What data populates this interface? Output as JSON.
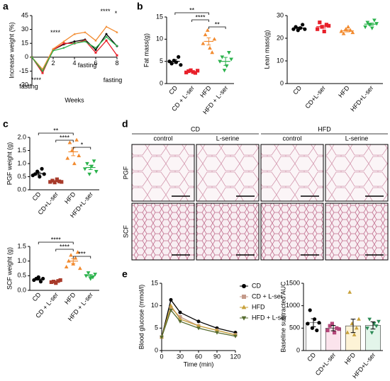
{
  "chart_data": [
    {
      "panel": "a",
      "type": "line",
      "y_label": "Increase weight (%)",
      "x_label": "Weeks",
      "x": [
        0,
        1,
        2,
        3,
        4,
        5,
        6,
        7,
        8
      ],
      "xlim": [
        0,
        8
      ],
      "xticks": [
        2,
        4,
        6,
        8
      ],
      "ylim": [
        -30,
        45
      ],
      "yticks": [
        -30,
        -15,
        0,
        15,
        30,
        45
      ],
      "x_axis_at_zero": true,
      "marker_size": 1.5,
      "series": [
        {
          "name": "CD",
          "color": "#000000",
          "marker": "circle",
          "values": [
            0,
            -15,
            8,
            14,
            17,
            19,
            8,
            25,
            12
          ]
        },
        {
          "name": "CD + L-ser",
          "color": "#e8202a",
          "marker": "square",
          "values": [
            0,
            -17,
            8,
            15,
            15,
            18,
            5,
            18,
            2
          ]
        },
        {
          "name": "HFD",
          "color": "#f28b30",
          "marker": "triangle",
          "values": [
            0,
            -13,
            9,
            17,
            25,
            27,
            18,
            33,
            27
          ]
        },
        {
          "name": "HFD + L-ser",
          "color": "#2bb24c",
          "marker": "triangle-down",
          "values": [
            0,
            -15,
            7,
            10,
            15,
            17,
            10,
            22,
            12
          ]
        }
      ],
      "annotations": [
        {
          "text": "****",
          "x": 0.4,
          "y": -25
        },
        {
          "text": "****",
          "x": 2.2,
          "y": 26
        },
        {
          "text": "****",
          "x": 6.9,
          "y": 49
        },
        {
          "text": "*",
          "x": 7.9,
          "y": 47
        },
        {
          "text": "fasting",
          "x": -0.3,
          "y": -32
        },
        {
          "text": "fasting",
          "x": 5.2,
          "y": -9
        },
        {
          "text": "fasting",
          "x": 7.6,
          "y": -25
        }
      ]
    },
    {
      "panel": "b",
      "type": "dot",
      "y_label": "Fat mass(g)",
      "categories": [
        "CD",
        "CD + L-ser",
        "HFD",
        "HFD + L-ser"
      ],
      "colors": [
        "#000000",
        "#e8202a",
        "#f28b30",
        "#2bb24c"
      ],
      "markers": [
        "circle",
        "square",
        "triangle",
        "triangle-down"
      ],
      "points": [
        [
          5,
          4.5,
          5.2,
          4.8,
          6,
          4.2
        ],
        [
          2.5,
          2.8,
          3,
          2.6,
          2.4,
          2.9
        ],
        [
          9,
          11,
          12,
          8,
          7,
          10
        ],
        [
          5,
          6,
          3,
          4,
          7,
          5.5
        ]
      ],
      "means": [
        5,
        2.7,
        9.5,
        5
      ],
      "errors": [
        0.4,
        0.1,
        0.8,
        0.9
      ],
      "ylim": [
        0,
        15
      ],
      "yticks": [
        0,
        5,
        10,
        15
      ],
      "brackets": [
        {
          "groups": [
            "CD",
            "HFD"
          ],
          "label": "**"
        },
        {
          "groups": [
            "CD + L-ser",
            "HFD"
          ],
          "label": "****"
        },
        {
          "groups": [
            "HFD",
            "HFD + L-ser"
          ],
          "label": "**"
        }
      ]
    },
    {
      "type": "dot",
      "y_label": "Lean mass(g)",
      "categories": [
        "CD",
        "CD+L-ser",
        "HFD",
        "HFD+L-ser"
      ],
      "colors": [
        "#000000",
        "#e8202a",
        "#f28b30",
        "#2bb24c"
      ],
      "markers": [
        "circle",
        "square",
        "triangle",
        "triangle-down"
      ],
      "points": [
        [
          24,
          25,
          23.5,
          24.5,
          26,
          24
        ],
        [
          24,
          27,
          25,
          23,
          26,
          25.5
        ],
        [
          23,
          22,
          24,
          25,
          23.5,
          22.5
        ],
        [
          25,
          27,
          26,
          24.5,
          28,
          26.5
        ]
      ],
      "means": [
        24.5,
        25.1,
        23.3,
        26.2
      ],
      "errors": [
        0.4,
        0.6,
        0.5,
        0.5
      ],
      "ylim": [
        0,
        30
      ],
      "yticks": [
        0,
        10,
        20,
        30
      ]
    },
    {
      "panel": "c",
      "type": "dot",
      "y_label": "PGF weight (g)",
      "categories": [
        "CD",
        "CD+L-ser",
        "HFD",
        "HFD+L-ser"
      ],
      "colors": [
        "#000000",
        "#a83a2a",
        "#f28b30",
        "#2bb24c"
      ],
      "markers": [
        "circle",
        "square",
        "triangle",
        "triangle-down"
      ],
      "points": [
        [
          0.55,
          0.6,
          0.7,
          0.5,
          0.8,
          0.6
        ],
        [
          0.3,
          0.35,
          0.28,
          0.4,
          0.32,
          0.3
        ],
        [
          1.2,
          1.8,
          1.5,
          1.0,
          1.9,
          1.3
        ],
        [
          0.8,
          1.0,
          0.6,
          0.9,
          1.1,
          0.7
        ]
      ],
      "means": [
        0.62,
        0.33,
        1.45,
        0.85
      ],
      "errors": [
        0.05,
        0.02,
        0.15,
        0.08
      ],
      "ylim": [
        0,
        2
      ],
      "yticks": [
        {
          "value": 0,
          "label": "0.0"
        },
        0.5,
        {
          "value": 1,
          "label": "1.0"
        },
        1.5,
        {
          "value": 2,
          "label": "2.0"
        }
      ],
      "brackets": [
        {
          "groups": [
            "CD",
            "HFD"
          ],
          "label": "**"
        },
        {
          "groups": [
            "CD+L-ser",
            "HFD"
          ],
          "label": "****"
        },
        {
          "groups": [
            "HFD",
            "HFD+L-ser"
          ],
          "label": "*"
        }
      ]
    },
    {
      "type": "dot",
      "y_label": "SCF weight (g)",
      "categories": [
        "CD",
        "CD + L-ser",
        "HFD",
        "HFD + L-ser"
      ],
      "colors": [
        "#000000",
        "#a83a2a",
        "#f28b30",
        "#2bb24c"
      ],
      "markers": [
        "circle",
        "square",
        "triangle",
        "triangle-down"
      ],
      "points": [
        [
          0.35,
          0.4,
          0.45,
          0.3,
          0.4
        ],
        [
          0.28,
          0.3,
          0.25,
          0.32,
          0.35
        ],
        [
          0.8,
          1.0,
          1.2,
          0.9,
          1.1,
          1.3,
          0.75
        ],
        [
          0.5,
          0.6,
          0.4,
          0.45,
          0.55
        ]
      ],
      "means": [
        0.38,
        0.3,
        1.0,
        0.5
      ],
      "errors": [
        0.03,
        0.02,
        0.08,
        0.04
      ],
      "ylim": [
        0,
        1.5
      ],
      "yticks": [
        {
          "value": 0,
          "label": "0.0"
        },
        0.5,
        {
          "value": 1,
          "label": "1.0"
        },
        1.5
      ],
      "brackets": [
        {
          "groups": [
            "CD",
            "HFD"
          ],
          "label": "****"
        },
        {
          "groups": [
            "CD + L-ser",
            "HFD"
          ],
          "label": "****"
        },
        {
          "groups": [
            "HFD",
            "HFD + L-ser"
          ],
          "label": "***"
        }
      ]
    },
    {
      "panel": "e",
      "type": "line",
      "y_label": "Blood glucose (mmol/l)",
      "x_label": "Time (min)",
      "x": [
        0,
        15,
        30,
        60,
        90,
        120
      ],
      "xlim": [
        0,
        120
      ],
      "xticks": [
        0,
        30,
        60,
        90,
        120
      ],
      "ylim": [
        0,
        15
      ],
      "yticks": [
        0,
        5,
        10,
        15
      ],
      "legend": true,
      "marker_size": 2.5,
      "series": [
        {
          "name": "CD",
          "color": "#000000",
          "marker": "circle",
          "values": [
            3,
            11.3,
            8.5,
            6.5,
            5,
            4
          ]
        },
        {
          "name": "CD + L-ser",
          "color": "#c49a8a",
          "marker": "square",
          "values": [
            3,
            9.5,
            7.5,
            5.5,
            4.5,
            3.5
          ]
        },
        {
          "name": "HFD",
          "color": "#c8a13a",
          "marker": "triangle",
          "values": [
            3,
            10,
            7,
            5.5,
            4.5,
            3.5
          ]
        },
        {
          "name": "HFD + L-ser",
          "color": "#556b2f",
          "marker": "triangle-down",
          "values": [
            3,
            9,
            6.5,
            5,
            4,
            3.2
          ]
        }
      ]
    },
    {
      "type": "bar-dot",
      "y_label": "Baseline subtracted AUC",
      "categories": [
        "CD",
        "CD+L-ser",
        "HFD",
        "HFD+L-ser"
      ],
      "colors": [
        "#000000",
        "#b5477a",
        "#c8a13a",
        "#2e8b57"
      ],
      "bar_colors": [
        "#ffffff",
        "#fbe3ec",
        "#fdf3d6",
        "#e3f5ea"
      ],
      "markers": [
        "circle",
        "square",
        "triangle",
        "triangle-down"
      ],
      "points": [
        [
          600,
          900,
          500,
          700,
          450,
          620
        ],
        [
          450,
          550,
          600,
          400,
          500,
          480
        ],
        [
          400,
          1300,
          600,
          350,
          500,
          700
        ],
        [
          500,
          700,
          400,
          600,
          550,
          650
        ]
      ],
      "means": [
        620,
        500,
        550,
        560
      ],
      "errors": [
        90,
        60,
        150,
        80
      ],
      "ylim": [
        0,
        1500
      ],
      "yticks": [
        0,
        500,
        1000,
        1500
      ]
    }
  ],
  "histology": {
    "panel": "d",
    "groups": [
      "CD",
      "HFD"
    ],
    "conditions": [
      "control",
      "L-serine",
      "control",
      "L-serine"
    ],
    "rows": [
      "PGF",
      "SCF"
    ]
  }
}
